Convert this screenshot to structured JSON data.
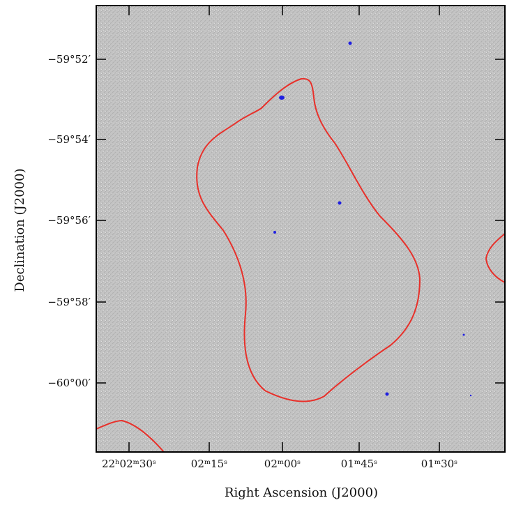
{
  "axes": {
    "x_label": "Right Ascension (J2000)",
    "y_label": "Declination (J2000)",
    "x_ticks": [
      "22ʰ02ᵐ30ˢ",
      "02ᵐ15ˢ",
      "02ᵐ00ˢ",
      "01ᵐ45ˢ",
      "01ᵐ30ˢ"
    ],
    "y_ticks": [
      "−59°52′",
      "−59°54′",
      "−59°56′",
      "−59°58′",
      "−60°00′"
    ]
  }
}
